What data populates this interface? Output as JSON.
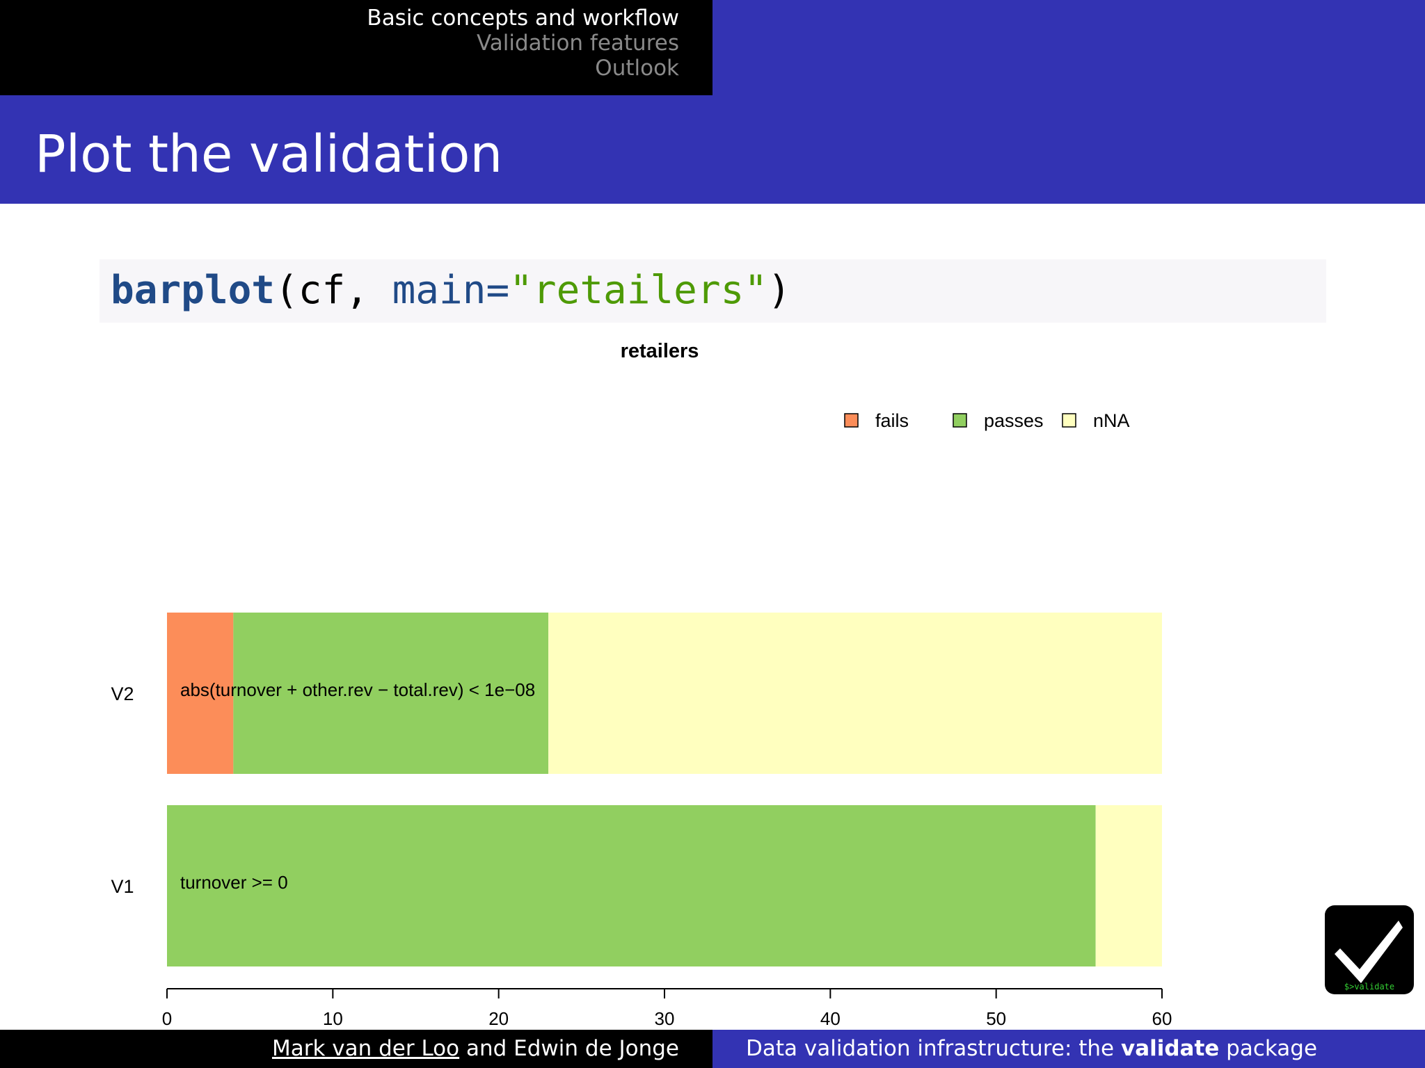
{
  "nav": {
    "items": [
      {
        "label": "Basic concepts and workflow",
        "active": true
      },
      {
        "label": "Validation features",
        "active": false
      },
      {
        "label": "Outlook",
        "active": false
      }
    ]
  },
  "slide": {
    "title": "Plot the validation"
  },
  "code": {
    "fn": "barplot",
    "open": "(cf, ",
    "arg": "main=",
    "str": "\"retailers\"",
    "close": ")"
  },
  "chart_data": {
    "type": "bar",
    "orientation": "horizontal",
    "stacked": true,
    "title": "retailers",
    "xlabel": "",
    "ylabel": "",
    "xlim": [
      0,
      60
    ],
    "xticks": [
      0,
      10,
      20,
      30,
      40,
      50,
      60
    ],
    "grid": false,
    "legend": "top-right",
    "categories": [
      "V2",
      "V1"
    ],
    "rule_labels": [
      "abs(turnover + other.rev − total.rev) < 1e−08",
      "turnover >= 0"
    ],
    "series": [
      {
        "name": "fails",
        "color": "#fc8d59",
        "values": [
          4,
          0
        ]
      },
      {
        "name": "passes",
        "color": "#91cf60",
        "values": [
          19,
          56
        ]
      },
      {
        "name": "nNA",
        "color": "#ffffbf",
        "values": [
          37,
          4
        ]
      }
    ]
  },
  "footer": {
    "author_1": "Mark van der Loo",
    "author_join": " and Edwin de Jonge",
    "talk_prefix": "Data validation infrastructure: the ",
    "talk_bold": "validate",
    "talk_suffix": " package"
  },
  "logo": {
    "icon": "checkmark-icon",
    "text": "$>validate",
    "text_color": "#33cc33"
  },
  "colors": {
    "theme_blue": "#3333b3",
    "nav_inactive": "#8a8a8a",
    "code_bg": "#f7f6f9"
  }
}
